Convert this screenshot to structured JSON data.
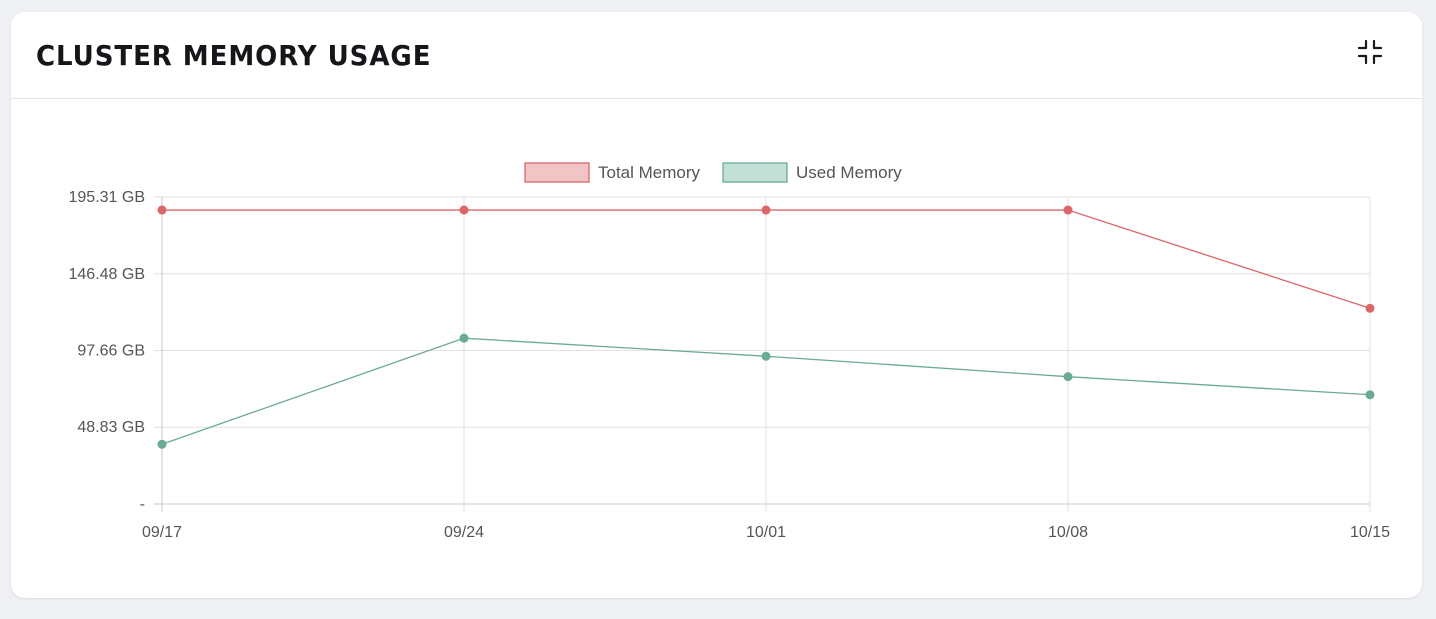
{
  "panel": {
    "title": "CLUSTER MEMORY USAGE",
    "collapse_icon": "collapse-icon"
  },
  "colors": {
    "total_line": "#d9676a",
    "total_fill": "#f1c4c5",
    "used_line": "#6aaa96",
    "used_fill": "#c3e0d6",
    "grid": "#e2e2e2",
    "axis_text": "#555555"
  },
  "chart_data": {
    "type": "line",
    "title": "",
    "xlabel": "",
    "ylabel": "",
    "categories": [
      "09/17",
      "09/24",
      "10/01",
      "10/08",
      "10/15"
    ],
    "y_ticks": [
      0,
      48.83,
      97.66,
      146.48,
      195.31
    ],
    "y_tick_labels": [
      "-",
      "48.83 GB",
      "97.66 GB",
      "146.48 GB",
      "195.31 GB"
    ],
    "ylim": [
      0,
      195.31
    ],
    "grid": true,
    "legend_position": "top-center",
    "series": [
      {
        "name": "Total Memory",
        "values": [
          187,
          187,
          187,
          187,
          124.5
        ]
      },
      {
        "name": "Used Memory",
        "values": [
          38,
          105.5,
          94,
          81,
          69.5
        ]
      }
    ]
  }
}
